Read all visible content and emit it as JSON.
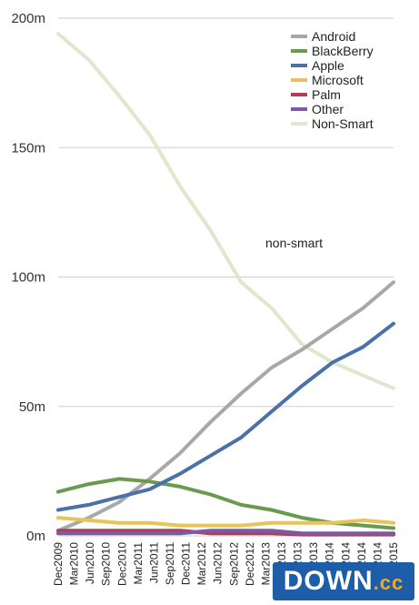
{
  "chart_data": {
    "type": "line",
    "title": "",
    "xlabel": "",
    "ylabel": "",
    "ylim": [
      0,
      200
    ],
    "y_ticks": [
      "0m",
      "50m",
      "100m",
      "150m",
      "200m"
    ],
    "y_tick_values": [
      0,
      50,
      100,
      150,
      200
    ],
    "x_tick_labels": [
      "Dec2009",
      "Mar2010",
      "Jun2010",
      "Sep2010",
      "Dec2010",
      "Mar2011",
      "Jun2011",
      "Sep2011",
      "Dec2011",
      "Mar2012",
      "Jun2012",
      "Sep2012",
      "Dec2012",
      "Mar2013",
      "Jun2013",
      "Sep2013",
      "Dec2013",
      "Mar2014",
      "Jun2014",
      "Sep2014",
      "Dec2014",
      "Mar2015"
    ],
    "grid": "horizontal",
    "legend_position": "top-right",
    "annotation": "non-smart",
    "series": [
      {
        "name": "Android",
        "color": "#a8a8a8",
        "values": [
          2,
          7,
          13,
          22,
          32,
          44,
          55,
          65,
          72,
          80,
          88,
          98
        ]
      },
      {
        "name": "BlackBerry",
        "color": "#6a9a4e",
        "values": [
          17,
          20,
          22,
          21,
          19,
          16,
          12,
          10,
          7,
          5,
          4,
          3
        ]
      },
      {
        "name": "Apple",
        "color": "#4a72a8",
        "values": [
          10,
          12,
          15,
          18,
          24,
          31,
          38,
          48,
          58,
          67,
          73,
          82
        ]
      },
      {
        "name": "Microsoft",
        "color": "#e8c25a",
        "values": [
          7,
          6,
          5,
          5,
          4,
          4,
          4,
          5,
          5,
          5,
          6,
          5
        ]
      },
      {
        "name": "Palm",
        "color": "#b43c5a",
        "values": [
          2,
          2,
          2,
          2,
          2,
          1,
          1,
          1,
          0.5,
          0.5,
          0.5,
          0.5
        ]
      },
      {
        "name": "Other",
        "color": "#7a5aa0",
        "values": [
          1,
          1,
          1,
          1,
          1,
          2,
          2,
          2,
          1,
          1,
          1,
          1
        ]
      },
      {
        "name": "Non-Smart",
        "color": "#dfe7cc",
        "values": [
          194,
          184,
          170,
          155,
          135,
          118,
          98,
          88,
          74,
          67,
          62,
          57
        ]
      }
    ]
  }
}
